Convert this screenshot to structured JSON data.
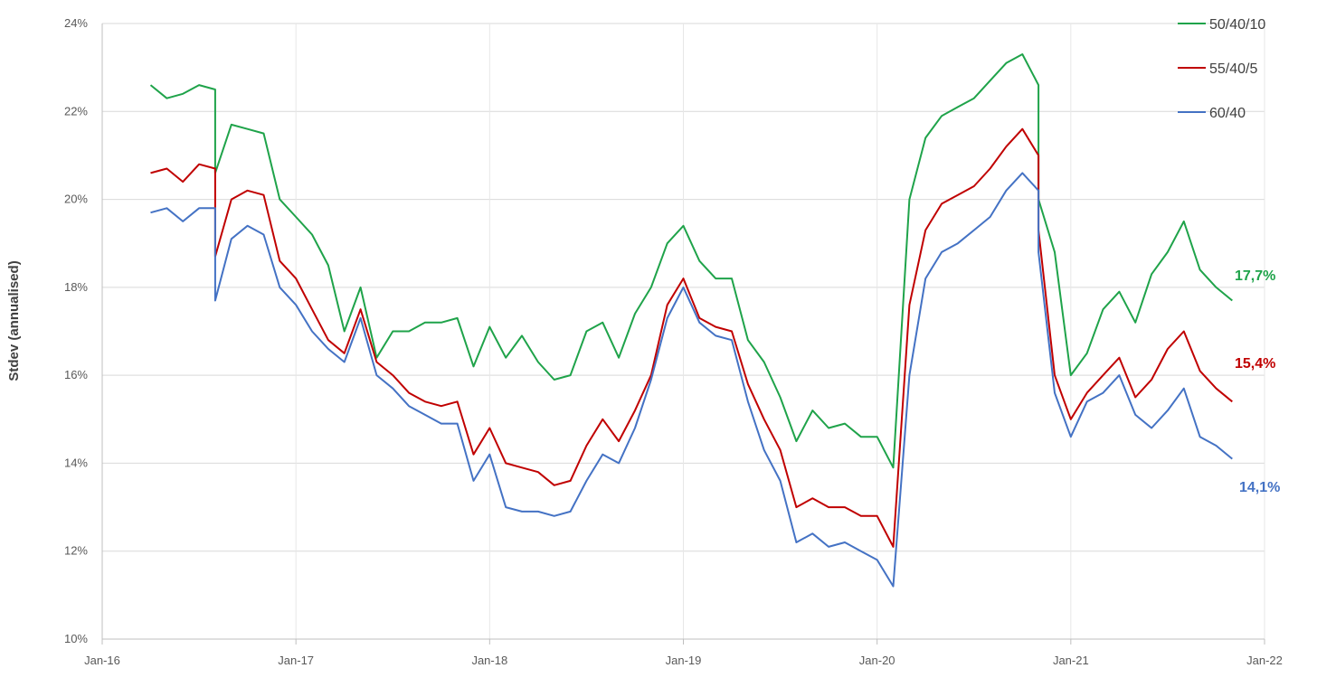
{
  "chart_data": {
    "type": "line",
    "ylabel": "Stdev (annualised)",
    "xlabel": "",
    "ylim": [
      10,
      24
    ],
    "y_ticks": [
      "10%",
      "12%",
      "14%",
      "16%",
      "18%",
      "20%",
      "22%",
      "24%"
    ],
    "x_ticks": [
      "Jan-16",
      "Jan-17",
      "Jan-18",
      "Jan-19",
      "Jan-20",
      "Jan-21",
      "Jan-22"
    ],
    "xlim": [
      "2016-01",
      "2022-01"
    ],
    "grid": true,
    "legend_position": "top-right",
    "series": [
      {
        "name": "50/40/10",
        "color": "#1FA34A",
        "end_label": "17,7%",
        "points": [
          [
            "2016-04",
            22.6
          ],
          [
            "2016-05",
            22.3
          ],
          [
            "2016-06",
            22.4
          ],
          [
            "2016-07",
            22.6
          ],
          [
            "2016-08",
            22.5
          ],
          [
            "2016-08",
            20.6
          ],
          [
            "2016-09",
            21.7
          ],
          [
            "2016-10",
            21.6
          ],
          [
            "2016-11",
            21.5
          ],
          [
            "2016-12",
            20.0
          ],
          [
            "2017-01",
            19.6
          ],
          [
            "2017-02",
            19.2
          ],
          [
            "2017-03",
            18.5
          ],
          [
            "2017-04",
            17.0
          ],
          [
            "2017-05",
            18.0
          ],
          [
            "2017-06",
            16.4
          ],
          [
            "2017-07",
            17.0
          ],
          [
            "2017-08",
            17.0
          ],
          [
            "2017-09",
            17.2
          ],
          [
            "2017-10",
            17.2
          ],
          [
            "2017-11",
            17.3
          ],
          [
            "2017-12",
            16.2
          ],
          [
            "2018-01",
            17.1
          ],
          [
            "2018-02",
            16.4
          ],
          [
            "2018-03",
            16.9
          ],
          [
            "2018-04",
            16.3
          ],
          [
            "2018-05",
            15.9
          ],
          [
            "2018-06",
            16.0
          ],
          [
            "2018-07",
            17.0
          ],
          [
            "2018-08",
            17.2
          ],
          [
            "2018-09",
            16.4
          ],
          [
            "2018-10",
            17.4
          ],
          [
            "2018-11",
            18.0
          ],
          [
            "2018-12",
            19.0
          ],
          [
            "2019-01",
            19.4
          ],
          [
            "2019-02",
            18.6
          ],
          [
            "2019-03",
            18.2
          ],
          [
            "2019-04",
            18.2
          ],
          [
            "2019-05",
            16.8
          ],
          [
            "2019-06",
            16.3
          ],
          [
            "2019-07",
            15.5
          ],
          [
            "2019-08",
            14.5
          ],
          [
            "2019-09",
            15.2
          ],
          [
            "2019-10",
            14.8
          ],
          [
            "2019-11",
            14.9
          ],
          [
            "2019-12",
            14.6
          ],
          [
            "2020-01",
            14.6
          ],
          [
            "2020-02",
            13.9
          ],
          [
            "2020-03",
            20.0
          ],
          [
            "2020-04",
            21.4
          ],
          [
            "2020-05",
            21.9
          ],
          [
            "2020-06",
            22.1
          ],
          [
            "2020-07",
            22.3
          ],
          [
            "2020-08",
            22.7
          ],
          [
            "2020-09",
            23.1
          ],
          [
            "2020-10",
            23.3
          ],
          [
            "2020-11",
            22.6
          ],
          [
            "2020-11",
            20.0
          ],
          [
            "2020-12",
            18.8
          ],
          [
            "2021-01",
            16.0
          ],
          [
            "2021-02",
            16.5
          ],
          [
            "2021-03",
            17.5
          ],
          [
            "2021-04",
            17.9
          ],
          [
            "2021-05",
            17.2
          ],
          [
            "2021-06",
            18.3
          ],
          [
            "2021-07",
            18.8
          ],
          [
            "2021-08",
            19.5
          ],
          [
            "2021-09",
            18.4
          ],
          [
            "2021-10",
            18.0
          ],
          [
            "2021-11",
            17.7
          ]
        ]
      },
      {
        "name": "55/40/5",
        "color": "#C00000",
        "end_label": "15,4%",
        "points": [
          [
            "2016-04",
            20.6
          ],
          [
            "2016-05",
            20.7
          ],
          [
            "2016-06",
            20.4
          ],
          [
            "2016-07",
            20.8
          ],
          [
            "2016-08",
            20.7
          ],
          [
            "2016-08",
            18.7
          ],
          [
            "2016-09",
            20.0
          ],
          [
            "2016-10",
            20.2
          ],
          [
            "2016-11",
            20.1
          ],
          [
            "2016-12",
            18.6
          ],
          [
            "2017-01",
            18.2
          ],
          [
            "2017-02",
            17.5
          ],
          [
            "2017-03",
            16.8
          ],
          [
            "2017-04",
            16.5
          ],
          [
            "2017-05",
            17.5
          ],
          [
            "2017-06",
            16.3
          ],
          [
            "2017-07",
            16.0
          ],
          [
            "2017-08",
            15.6
          ],
          [
            "2017-09",
            15.4
          ],
          [
            "2017-10",
            15.3
          ],
          [
            "2017-11",
            15.4
          ],
          [
            "2017-12",
            14.2
          ],
          [
            "2018-01",
            14.8
          ],
          [
            "2018-02",
            14.0
          ],
          [
            "2018-03",
            13.9
          ],
          [
            "2018-04",
            13.8
          ],
          [
            "2018-05",
            13.5
          ],
          [
            "2018-06",
            13.6
          ],
          [
            "2018-07",
            14.4
          ],
          [
            "2018-08",
            15.0
          ],
          [
            "2018-09",
            14.5
          ],
          [
            "2018-10",
            15.2
          ],
          [
            "2018-11",
            16.0
          ],
          [
            "2018-12",
            17.6
          ],
          [
            "2019-01",
            18.2
          ],
          [
            "2019-02",
            17.3
          ],
          [
            "2019-03",
            17.1
          ],
          [
            "2019-04",
            17.0
          ],
          [
            "2019-05",
            15.8
          ],
          [
            "2019-06",
            15.0
          ],
          [
            "2019-07",
            14.3
          ],
          [
            "2019-08",
            13.0
          ],
          [
            "2019-09",
            13.2
          ],
          [
            "2019-10",
            13.0
          ],
          [
            "2019-11",
            13.0
          ],
          [
            "2019-12",
            12.8
          ],
          [
            "2020-01",
            12.8
          ],
          [
            "2020-02",
            12.1
          ],
          [
            "2020-03",
            17.6
          ],
          [
            "2020-04",
            19.3
          ],
          [
            "2020-05",
            19.9
          ],
          [
            "2020-06",
            20.1
          ],
          [
            "2020-07",
            20.3
          ],
          [
            "2020-08",
            20.7
          ],
          [
            "2020-09",
            21.2
          ],
          [
            "2020-10",
            21.6
          ],
          [
            "2020-11",
            21.0
          ],
          [
            "2020-11",
            19.3
          ],
          [
            "2020-12",
            16.0
          ],
          [
            "2021-01",
            15.0
          ],
          [
            "2021-02",
            15.6
          ],
          [
            "2021-03",
            16.0
          ],
          [
            "2021-04",
            16.4
          ],
          [
            "2021-05",
            15.5
          ],
          [
            "2021-06",
            15.9
          ],
          [
            "2021-07",
            16.6
          ],
          [
            "2021-08",
            17.0
          ],
          [
            "2021-09",
            16.1
          ],
          [
            "2021-10",
            15.7
          ],
          [
            "2021-11",
            15.4
          ]
        ]
      },
      {
        "name": "60/40",
        "color": "#4472C4",
        "end_label": "14,1%",
        "points": [
          [
            "2016-04",
            19.7
          ],
          [
            "2016-05",
            19.8
          ],
          [
            "2016-06",
            19.5
          ],
          [
            "2016-07",
            19.8
          ],
          [
            "2016-08",
            19.8
          ],
          [
            "2016-08",
            17.7
          ],
          [
            "2016-09",
            19.1
          ],
          [
            "2016-10",
            19.4
          ],
          [
            "2016-11",
            19.2
          ],
          [
            "2016-12",
            18.0
          ],
          [
            "2017-01",
            17.6
          ],
          [
            "2017-02",
            17.0
          ],
          [
            "2017-03",
            16.6
          ],
          [
            "2017-04",
            16.3
          ],
          [
            "2017-05",
            17.3
          ],
          [
            "2017-06",
            16.0
          ],
          [
            "2017-07",
            15.7
          ],
          [
            "2017-08",
            15.3
          ],
          [
            "2017-09",
            15.1
          ],
          [
            "2017-10",
            14.9
          ],
          [
            "2017-11",
            14.9
          ],
          [
            "2017-12",
            13.6
          ],
          [
            "2018-01",
            14.2
          ],
          [
            "2018-02",
            13.0
          ],
          [
            "2018-03",
            12.9
          ],
          [
            "2018-04",
            12.9
          ],
          [
            "2018-05",
            12.8
          ],
          [
            "2018-06",
            12.9
          ],
          [
            "2018-07",
            13.6
          ],
          [
            "2018-08",
            14.2
          ],
          [
            "2018-09",
            14.0
          ],
          [
            "2018-10",
            14.8
          ],
          [
            "2018-11",
            15.9
          ],
          [
            "2018-12",
            17.3
          ],
          [
            "2019-01",
            18.0
          ],
          [
            "2019-02",
            17.2
          ],
          [
            "2019-03",
            16.9
          ],
          [
            "2019-04",
            16.8
          ],
          [
            "2019-05",
            15.4
          ],
          [
            "2019-06",
            14.3
          ],
          [
            "2019-07",
            13.6
          ],
          [
            "2019-08",
            12.2
          ],
          [
            "2019-09",
            12.4
          ],
          [
            "2019-10",
            12.1
          ],
          [
            "2019-11",
            12.2
          ],
          [
            "2019-12",
            12.0
          ],
          [
            "2020-01",
            11.8
          ],
          [
            "2020-02",
            11.2
          ],
          [
            "2020-03",
            16.0
          ],
          [
            "2020-04",
            18.2
          ],
          [
            "2020-05",
            18.8
          ],
          [
            "2020-06",
            19.0
          ],
          [
            "2020-07",
            19.3
          ],
          [
            "2020-08",
            19.6
          ],
          [
            "2020-09",
            20.2
          ],
          [
            "2020-10",
            20.6
          ],
          [
            "2020-11",
            20.2
          ],
          [
            "2020-11",
            18.8
          ],
          [
            "2020-12",
            15.6
          ],
          [
            "2021-01",
            14.6
          ],
          [
            "2021-02",
            15.4
          ],
          [
            "2021-03",
            15.6
          ],
          [
            "2021-04",
            16.0
          ],
          [
            "2021-05",
            15.1
          ],
          [
            "2021-06",
            14.8
          ],
          [
            "2021-07",
            15.2
          ],
          [
            "2021-08",
            15.7
          ],
          [
            "2021-09",
            14.6
          ],
          [
            "2021-10",
            14.4
          ],
          [
            "2021-11",
            14.1
          ]
        ]
      }
    ]
  }
}
